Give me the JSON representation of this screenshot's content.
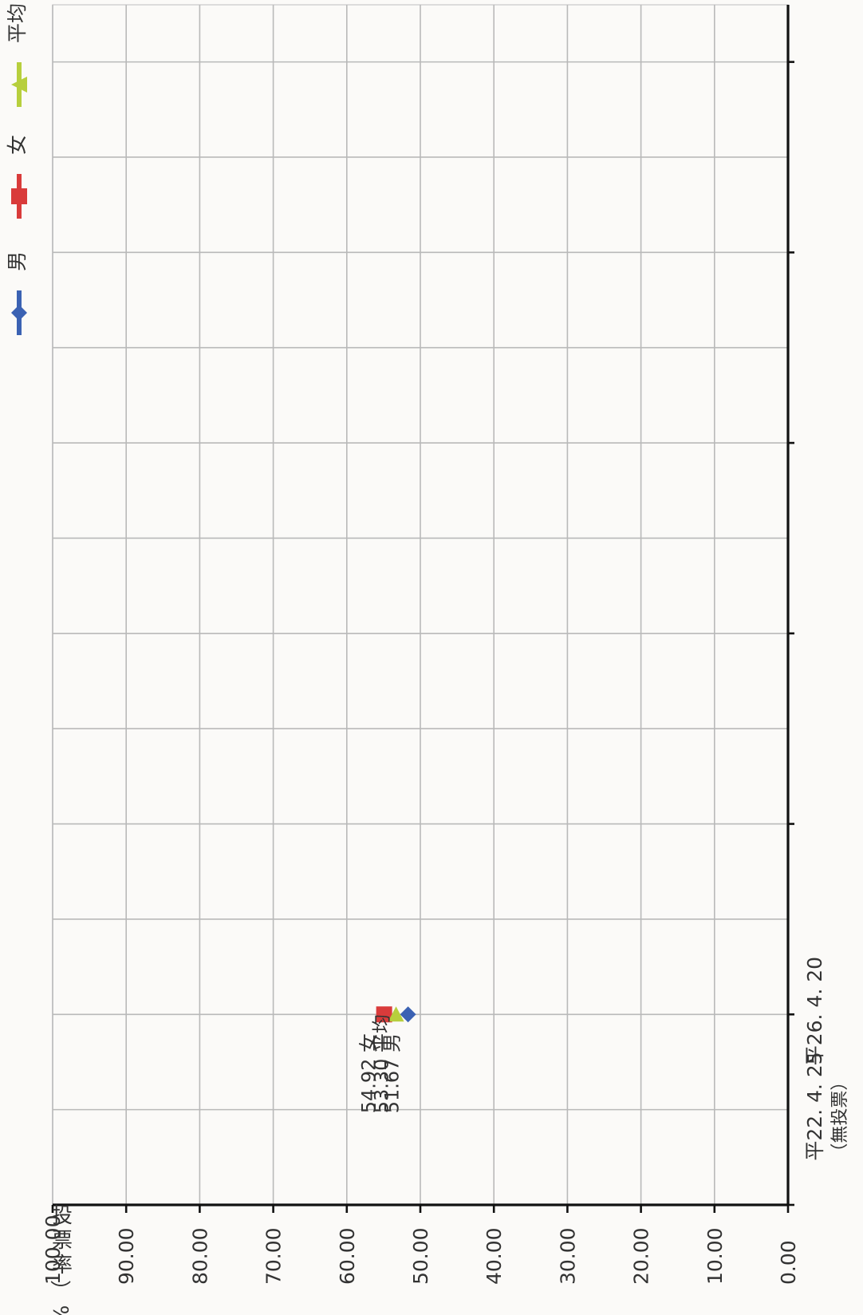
{
  "chart_data": {
    "type": "line",
    "orientation": "rotated-90-clockwise",
    "ylabel": "投票率（%）",
    "yticks": [
      "0.00",
      "10.00",
      "20.00",
      "30.00",
      "40.00",
      "50.00",
      "60.00",
      "70.00",
      "80.00",
      "90.00",
      "100.00"
    ],
    "ylim": [
      0,
      100
    ],
    "categories": [
      "平22. 4. 25",
      "平26. 4. 20",
      "",
      "",
      "",
      "",
      "",
      "",
      "",
      "",
      "",
      ""
    ],
    "category_notes": [
      "（無投票）",
      "",
      "",
      "",
      "",
      "",
      "",
      "",
      "",
      "",
      "",
      ""
    ],
    "grid": true,
    "legend": {
      "position": "top",
      "entries": [
        "男",
        "女",
        "平均"
      ]
    },
    "series": [
      {
        "name": "男",
        "color": "#3b62b3",
        "marker": "diamond",
        "values": [
          null,
          51.67,
          null,
          null,
          null,
          null,
          null,
          null,
          null,
          null,
          null,
          null
        ],
        "labels": [
          null,
          "51.67 男",
          null,
          null,
          null,
          null,
          null,
          null,
          null,
          null,
          null,
          null
        ]
      },
      {
        "name": "女",
        "color": "#d93b3b",
        "marker": "square",
        "values": [
          null,
          54.92,
          null,
          null,
          null,
          null,
          null,
          null,
          null,
          null,
          null,
          null
        ],
        "labels": [
          null,
          "54.92 女",
          null,
          null,
          null,
          null,
          null,
          null,
          null,
          null,
          null,
          null
        ]
      },
      {
        "name": "平均",
        "color": "#b7cf3d",
        "marker": "triangle",
        "values": [
          null,
          53.3,
          null,
          null,
          null,
          null,
          null,
          null,
          null,
          null,
          null,
          null
        ],
        "labels": [
          null,
          "53.30 平均",
          null,
          null,
          null,
          null,
          null,
          null,
          null,
          null,
          null,
          null
        ]
      }
    ]
  }
}
